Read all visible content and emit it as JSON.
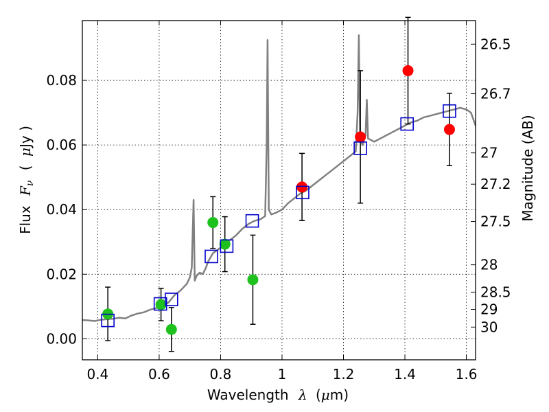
{
  "chart_data": {
    "type": "scatter",
    "xlabel_text": "Wavelength",
    "xlabel_symbol": "λ",
    "xlabel_unit_open": "(",
    "xlabel_unit_mu": "μ",
    "xlabel_unit_rest": "m)",
    "ylabel_text": "Flux",
    "ylabel_symbol": "F",
    "ylabel_symbol_sub": "ν",
    "ylabel_unit_open": "(",
    "ylabel_unit_mu": "μ",
    "ylabel_unit_rest": "Jy )",
    "y2label": "Magnitude (AB)",
    "xlim": [
      0.35,
      1.63
    ],
    "ylim": [
      -0.0065,
      0.0985
    ],
    "grid": true,
    "x_ticks": [
      0.4,
      0.6,
      0.8,
      1.0,
      1.2,
      1.4,
      1.6
    ],
    "x_tick_labels": [
      "0.4",
      "0.6",
      "0.8",
      "1",
      "1.2",
      "1.4",
      "1.6"
    ],
    "y_ticks": [
      0.0,
      0.02,
      0.04,
      0.06,
      0.08
    ],
    "y_tick_labels": [
      "0.00",
      "0.02",
      "0.04",
      "0.06",
      "0.08"
    ],
    "mag_ticks": [
      26.5,
      26.7,
      27,
      27.2,
      27.5,
      28,
      28.5,
      29,
      30
    ],
    "mag_tick_labels": [
      "26.5",
      "26.7",
      "27",
      "27.2",
      "27.5",
      "28",
      "28.5",
      "29",
      "30"
    ],
    "colors": {
      "model": "#808080",
      "green": "#1ec11e",
      "red": "#ff0000",
      "square": "#0000cc",
      "errorbar": "#000000"
    },
    "series": [
      {
        "marker": "green-circle",
        "points": [
          {
            "x": 0.433,
            "y": 0.0077,
            "yerr": 0.0083
          },
          {
            "x": 0.606,
            "y": 0.0106,
            "yerr": 0.005
          },
          {
            "x": 0.64,
            "y": 0.0029,
            "yerr": 0.0068
          },
          {
            "x": 0.775,
            "y": 0.036,
            "yerr": 0.008
          },
          {
            "x": 0.814,
            "y": 0.0293,
            "yerr": 0.0085
          },
          {
            "x": 0.905,
            "y": 0.0183,
            "yerr": 0.0138
          }
        ]
      },
      {
        "marker": "red-circle",
        "points": [
          {
            "x": 1.065,
            "y": 0.047,
            "yerr": 0.0104
          },
          {
            "x": 1.255,
            "y": 0.0625,
            "yerr": 0.0205
          },
          {
            "x": 1.41,
            "y": 0.083,
            "yerr": 0.0165
          },
          {
            "x": 1.545,
            "y": 0.0648,
            "yerr": 0.0112
          }
        ]
      },
      {
        "marker": "blue-square",
        "points": [
          {
            "x": 0.433,
            "y": 0.0057
          },
          {
            "x": 0.604,
            "y": 0.0108
          },
          {
            "x": 0.64,
            "y": 0.0122
          },
          {
            "x": 0.77,
            "y": 0.0255
          },
          {
            "x": 0.82,
            "y": 0.0287
          },
          {
            "x": 0.903,
            "y": 0.0365
          },
          {
            "x": 1.067,
            "y": 0.0453
          },
          {
            "x": 1.255,
            "y": 0.059
          },
          {
            "x": 1.407,
            "y": 0.0665
          },
          {
            "x": 1.545,
            "y": 0.0705
          }
        ]
      },
      {
        "marker": "model-line",
        "points": [
          {
            "x": 0.35,
            "y": 0.0058
          },
          {
            "x": 0.37,
            "y": 0.0057
          },
          {
            "x": 0.39,
            "y": 0.0055
          },
          {
            "x": 0.41,
            "y": 0.0059
          },
          {
            "x": 0.43,
            "y": 0.0061
          },
          {
            "x": 0.45,
            "y": 0.0062
          },
          {
            "x": 0.47,
            "y": 0.0065
          },
          {
            "x": 0.49,
            "y": 0.0063
          },
          {
            "x": 0.51,
            "y": 0.0072
          },
          {
            "x": 0.53,
            "y": 0.0078
          },
          {
            "x": 0.55,
            "y": 0.0082
          },
          {
            "x": 0.57,
            "y": 0.009
          },
          {
            "x": 0.59,
            "y": 0.0095
          },
          {
            "x": 0.61,
            "y": 0.0103
          },
          {
            "x": 0.63,
            "y": 0.0112
          },
          {
            "x": 0.65,
            "y": 0.0135
          },
          {
            "x": 0.67,
            "y": 0.015
          },
          {
            "x": 0.69,
            "y": 0.017
          },
          {
            "x": 0.7,
            "y": 0.019
          },
          {
            "x": 0.706,
            "y": 0.022
          },
          {
            "x": 0.712,
            "y": 0.043
          },
          {
            "x": 0.716,
            "y": 0.018
          },
          {
            "x": 0.722,
            "y": 0.0195
          },
          {
            "x": 0.732,
            "y": 0.0205
          },
          {
            "x": 0.742,
            "y": 0.02
          },
          {
            "x": 0.752,
            "y": 0.022
          },
          {
            "x": 0.76,
            "y": 0.024
          },
          {
            "x": 0.775,
            "y": 0.0265
          },
          {
            "x": 0.79,
            "y": 0.0275
          },
          {
            "x": 0.81,
            "y": 0.029
          },
          {
            "x": 0.83,
            "y": 0.0305
          },
          {
            "x": 0.85,
            "y": 0.032
          },
          {
            "x": 0.87,
            "y": 0.034
          },
          {
            "x": 0.89,
            "y": 0.0355
          },
          {
            "x": 0.91,
            "y": 0.0365
          },
          {
            "x": 0.93,
            "y": 0.037
          },
          {
            "x": 0.945,
            "y": 0.038
          },
          {
            "x": 0.95,
            "y": 0.06
          },
          {
            "x": 0.953,
            "y": 0.0925
          },
          {
            "x": 0.957,
            "y": 0.04
          },
          {
            "x": 0.965,
            "y": 0.0385
          },
          {
            "x": 0.98,
            "y": 0.039
          },
          {
            "x": 1.0,
            "y": 0.04
          },
          {
            "x": 1.02,
            "y": 0.042
          },
          {
            "x": 1.04,
            "y": 0.0435
          },
          {
            "x": 1.06,
            "y": 0.045
          },
          {
            "x": 1.08,
            "y": 0.046
          },
          {
            "x": 1.1,
            "y": 0.0475
          },
          {
            "x": 1.12,
            "y": 0.049
          },
          {
            "x": 1.14,
            "y": 0.0505
          },
          {
            "x": 1.16,
            "y": 0.052
          },
          {
            "x": 1.18,
            "y": 0.0535
          },
          {
            "x": 1.2,
            "y": 0.055
          },
          {
            "x": 1.22,
            "y": 0.0565
          },
          {
            "x": 1.24,
            "y": 0.058
          },
          {
            "x": 1.246,
            "y": 0.07
          },
          {
            "x": 1.25,
            "y": 0.094
          },
          {
            "x": 1.254,
            "y": 0.062
          },
          {
            "x": 1.262,
            "y": 0.06
          },
          {
            "x": 1.272,
            "y": 0.063
          },
          {
            "x": 1.276,
            "y": 0.074
          },
          {
            "x": 1.28,
            "y": 0.062
          },
          {
            "x": 1.3,
            "y": 0.061
          },
          {
            "x": 1.32,
            "y": 0.062
          },
          {
            "x": 1.34,
            "y": 0.063
          },
          {
            "x": 1.36,
            "y": 0.064
          },
          {
            "x": 1.38,
            "y": 0.065
          },
          {
            "x": 1.4,
            "y": 0.066
          },
          {
            "x": 1.42,
            "y": 0.067
          },
          {
            "x": 1.44,
            "y": 0.0675
          },
          {
            "x": 1.46,
            "y": 0.0685
          },
          {
            "x": 1.48,
            "y": 0.069
          },
          {
            "x": 1.5,
            "y": 0.0695
          },
          {
            "x": 1.52,
            "y": 0.07
          },
          {
            "x": 1.54,
            "y": 0.0705
          },
          {
            "x": 1.56,
            "y": 0.071
          },
          {
            "x": 1.58,
            "y": 0.0715
          },
          {
            "x": 1.6,
            "y": 0.071
          },
          {
            "x": 1.615,
            "y": 0.07
          },
          {
            "x": 1.63,
            "y": 0.066
          }
        ]
      }
    ]
  }
}
